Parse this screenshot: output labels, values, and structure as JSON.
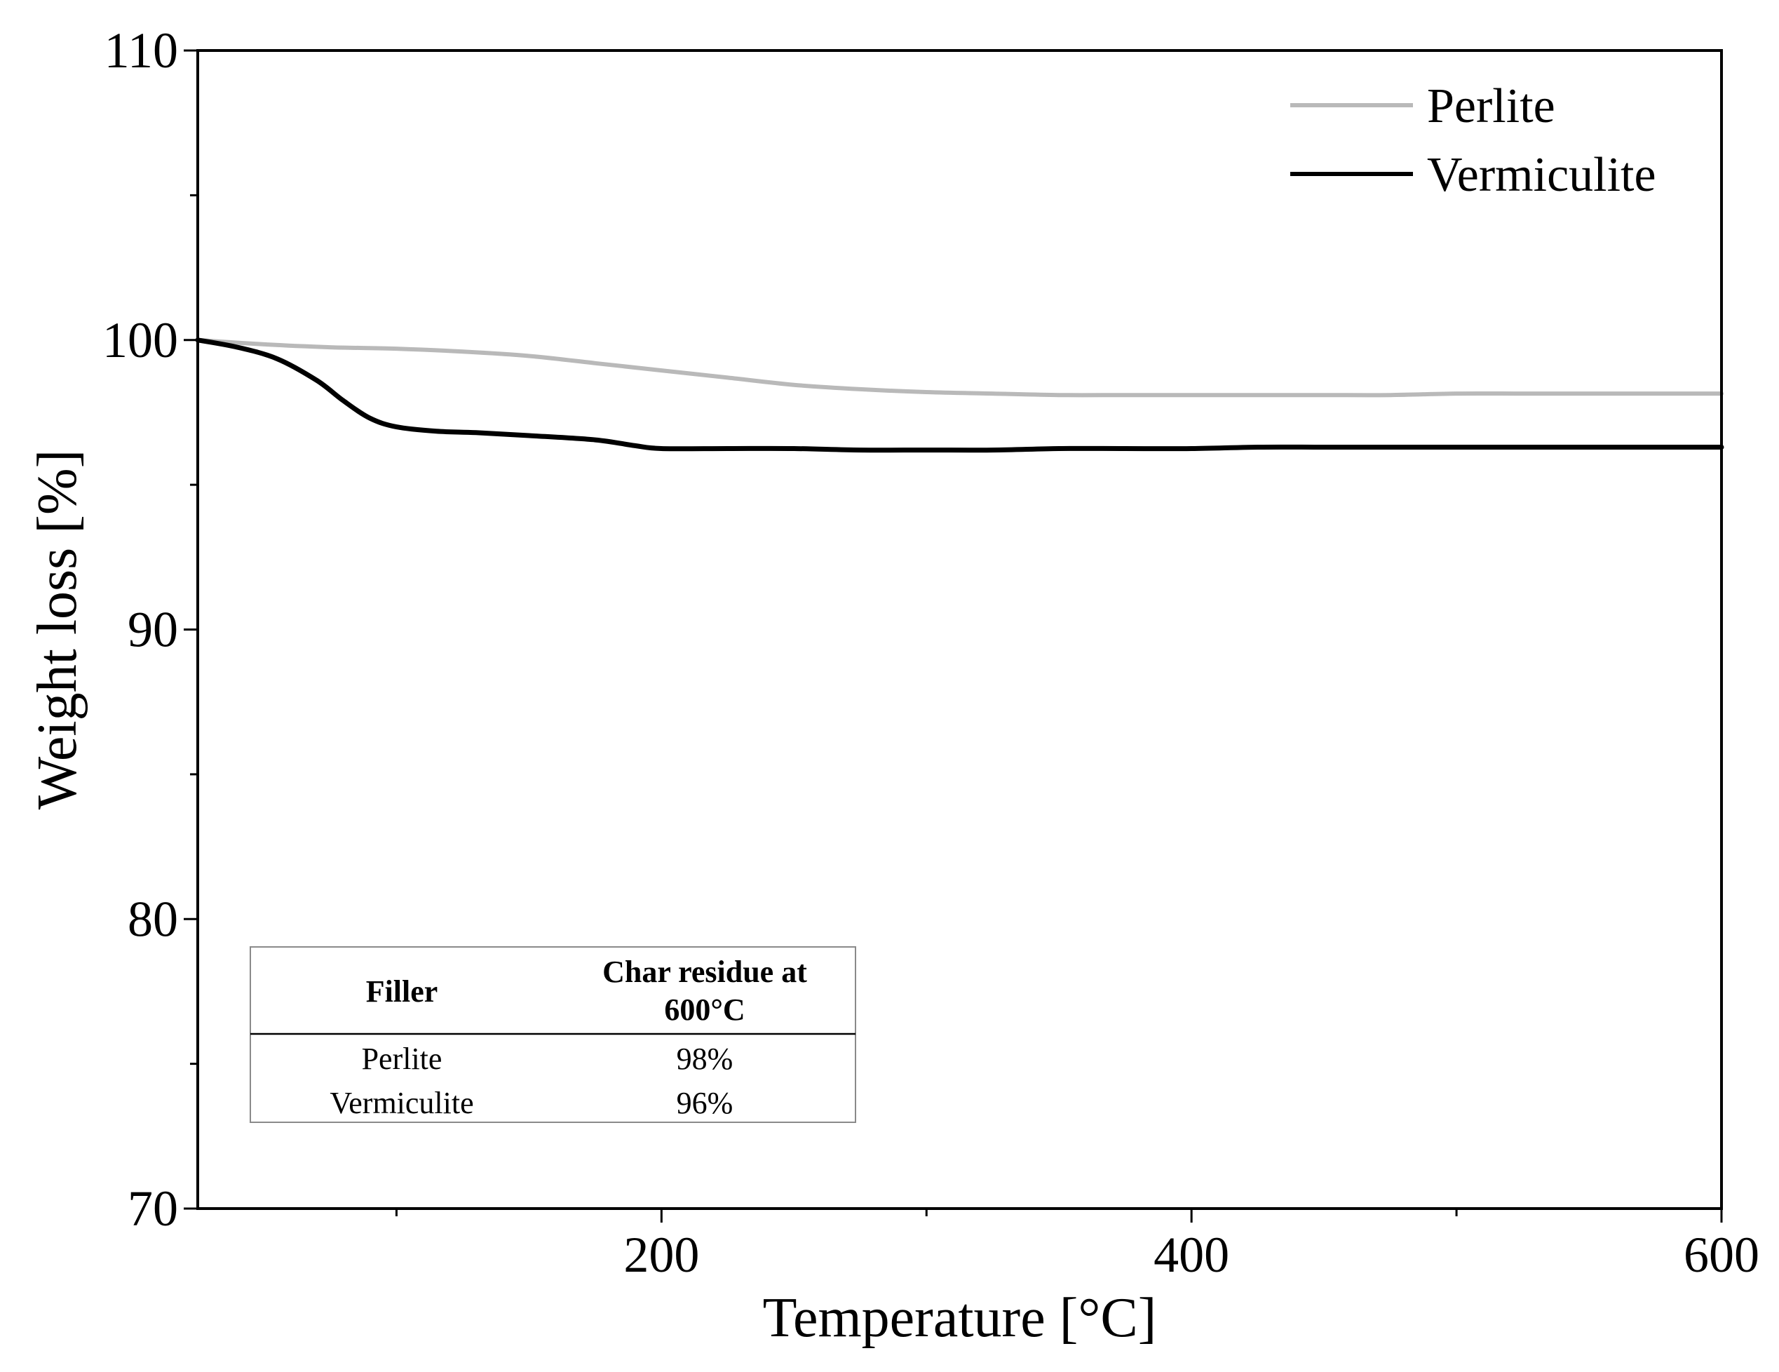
{
  "chart_data": {
    "type": "line",
    "title": "",
    "xlabel": "Temperature [°C]",
    "ylabel": "Weight loss [%]",
    "xlim": [
      25,
      600
    ],
    "ylim": [
      70,
      110
    ],
    "x_major_ticks": [
      200,
      400,
      600
    ],
    "x_minor_ticks": [
      100,
      300,
      500
    ],
    "y_major_ticks": [
      70,
      80,
      90,
      100,
      110
    ],
    "y_minor_ticks": [
      75,
      85,
      95,
      105
    ],
    "grid": false,
    "legend_position": "top-right",
    "series": [
      {
        "name": "Perlite",
        "color": "#b9b9b9",
        "x": [
          25,
          50,
          75,
          100,
          125,
          150,
          175,
          200,
          225,
          250,
          275,
          300,
          325,
          350,
          375,
          400,
          425,
          450,
          475,
          500,
          525,
          550,
          575,
          600
        ],
        "y": [
          100.0,
          99.85,
          99.75,
          99.7,
          99.6,
          99.45,
          99.2,
          98.95,
          98.7,
          98.45,
          98.3,
          98.2,
          98.15,
          98.1,
          98.1,
          98.1,
          98.1,
          98.1,
          98.1,
          98.15,
          98.15,
          98.15,
          98.15,
          98.15
        ]
      },
      {
        "name": "Vermiculite",
        "color": "#000000",
        "x": [
          25,
          40,
          55,
          70,
          80,
          90,
          100,
          115,
          130,
          150,
          175,
          190,
          200,
          225,
          250,
          275,
          300,
          325,
          350,
          375,
          400,
          425,
          450,
          475,
          500,
          525,
          550,
          575,
          600
        ],
        "y": [
          100.0,
          99.75,
          99.35,
          98.6,
          97.9,
          97.3,
          97.0,
          96.85,
          96.8,
          96.7,
          96.55,
          96.35,
          96.25,
          96.25,
          96.25,
          96.2,
          96.2,
          96.2,
          96.25,
          96.25,
          96.25,
          96.3,
          96.3,
          96.3,
          96.3,
          96.3,
          96.3,
          96.3,
          96.3
        ]
      }
    ],
    "inset_table": {
      "headers": [
        "Filler",
        "Char residue at 600°C"
      ],
      "rows": [
        [
          "Perlite",
          "98%"
        ],
        [
          "Vermiculite",
          "96%"
        ]
      ]
    }
  }
}
